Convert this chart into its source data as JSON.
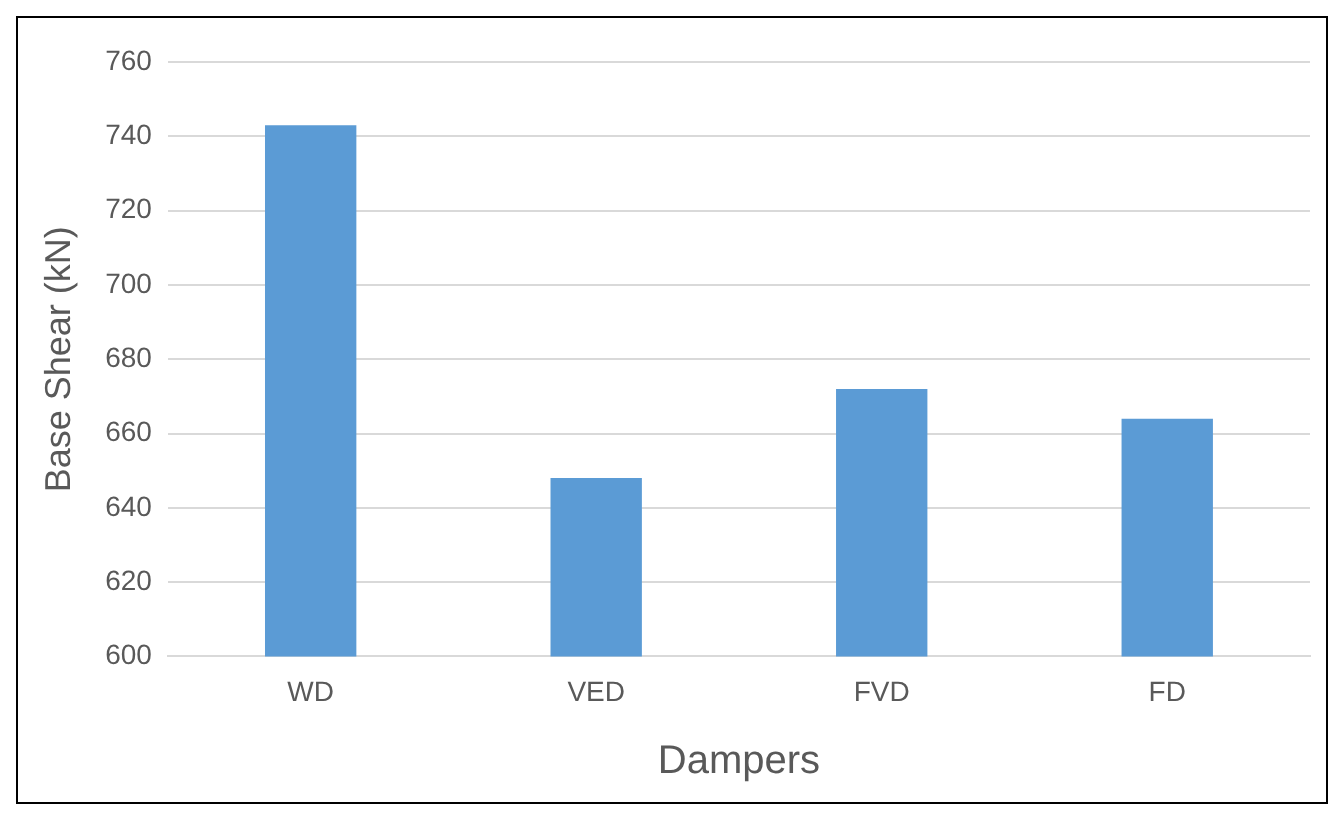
{
  "chart_data": {
    "type": "bar",
    "xlabel": "Dampers",
    "ylabel": "Base Shear (kN)",
    "categories": [
      "WD",
      "VED",
      "FVD",
      "FD"
    ],
    "values": [
      743,
      648,
      672,
      664
    ],
    "color": "#5b9bd5",
    "ylim": [
      600,
      760
    ],
    "yticks": [
      600,
      620,
      640,
      660,
      680,
      700,
      720,
      740,
      760
    ],
    "grid": "y",
    "legend": false
  }
}
